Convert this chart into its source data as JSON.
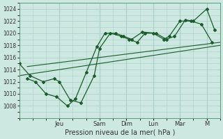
{
  "xlabel": "Pression niveau de la mer( hPa )",
  "bg_color": "#cce8e0",
  "grid_color": "#a8cfc8",
  "line_color": "#1a5c2a",
  "figsize": [
    3.2,
    2.0
  ],
  "dpi": 100,
  "ylim": [
    1006,
    1025
  ],
  "yticks": [
    1008,
    1010,
    1012,
    1014,
    1016,
    1018,
    1020,
    1022,
    1024
  ],
  "xlim": [
    0,
    7.5
  ],
  "x_tick_labels": [
    "Jeu",
    "Sam",
    "Dim",
    "Lun",
    "Mar",
    "M"
  ],
  "x_tick_pos": [
    1.5,
    3.0,
    4.0,
    5.0,
    6.0,
    7.0
  ],
  "line1_x": [
    0.0,
    0.4,
    0.9,
    1.3,
    1.5,
    1.9,
    2.3,
    2.8,
    3.0,
    3.4,
    3.8,
    4.1,
    4.4,
    4.7,
    5.0,
    5.4,
    5.6,
    6.0,
    6.4,
    6.8,
    7.2
  ],
  "line1_y": [
    1015.0,
    1013.0,
    1012.0,
    1012.5,
    1012.0,
    1009.0,
    1008.5,
    1013.0,
    1017.5,
    1020.0,
    1019.5,
    1019.0,
    1018.5,
    1020.0,
    1020.0,
    1019.0,
    1019.5,
    1022.0,
    1022.0,
    1021.5,
    1018.5
  ],
  "line2_x": [
    0.3,
    0.6,
    1.0,
    1.4,
    1.8,
    2.1,
    2.5,
    2.9,
    3.2,
    3.6,
    3.9,
    4.2,
    4.6,
    5.1,
    5.5,
    5.8,
    6.2,
    6.5,
    7.0,
    7.3
  ],
  "line2_y": [
    1012.5,
    1012.0,
    1010.0,
    1009.5,
    1008.0,
    1009.2,
    1013.5,
    1017.8,
    1020.0,
    1020.0,
    1019.5,
    1019.0,
    1020.2,
    1020.0,
    1019.0,
    1019.5,
    1022.2,
    1022.0,
    1024.0,
    1020.5
  ],
  "trend1_x": [
    0.0,
    7.5
  ],
  "trend1_y": [
    1013.0,
    1018.0
  ],
  "trend2_x": [
    0.3,
    7.5
  ],
  "trend2_y": [
    1014.5,
    1018.5
  ]
}
